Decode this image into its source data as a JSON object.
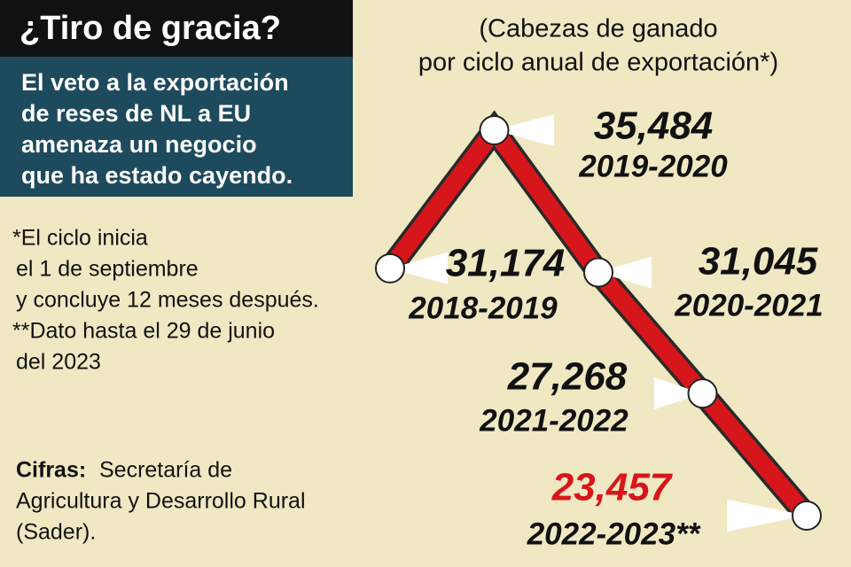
{
  "chart_data": {
    "type": "line",
    "title": "¿Tiro de gracia?",
    "subtitle_lines": [
      "El veto a la exportación",
      "de reses de NL a EU",
      "amenaza un negocio",
      "que ha estado cayendo."
    ],
    "unit_lines": [
      "(Cabezas de ganado",
      "por ciclo anual de exportación*)"
    ],
    "note_lines": [
      "*El ciclo inicia",
      "el 1 de septiembre",
      "y concluye 12 meses después.",
      "**Dato hasta el 29 de junio",
      "del 2023"
    ],
    "source_label": "Cifras:",
    "source_lines": [
      "Secretaría de",
      "Agricultura y Desarrollo Rural",
      "(Sader)."
    ],
    "categories": [
      "2018-2019",
      "2019-2020",
      "2020-2021",
      "2021-2022",
      "2022-2023**"
    ],
    "values": [
      31174,
      35484,
      31045,
      27268,
      23457
    ],
    "value_labels": [
      "31,174",
      "35,484",
      "31,045",
      "27,268",
      "23,457"
    ],
    "color": "#d7161b",
    "highlight_color": "#d7161b"
  }
}
